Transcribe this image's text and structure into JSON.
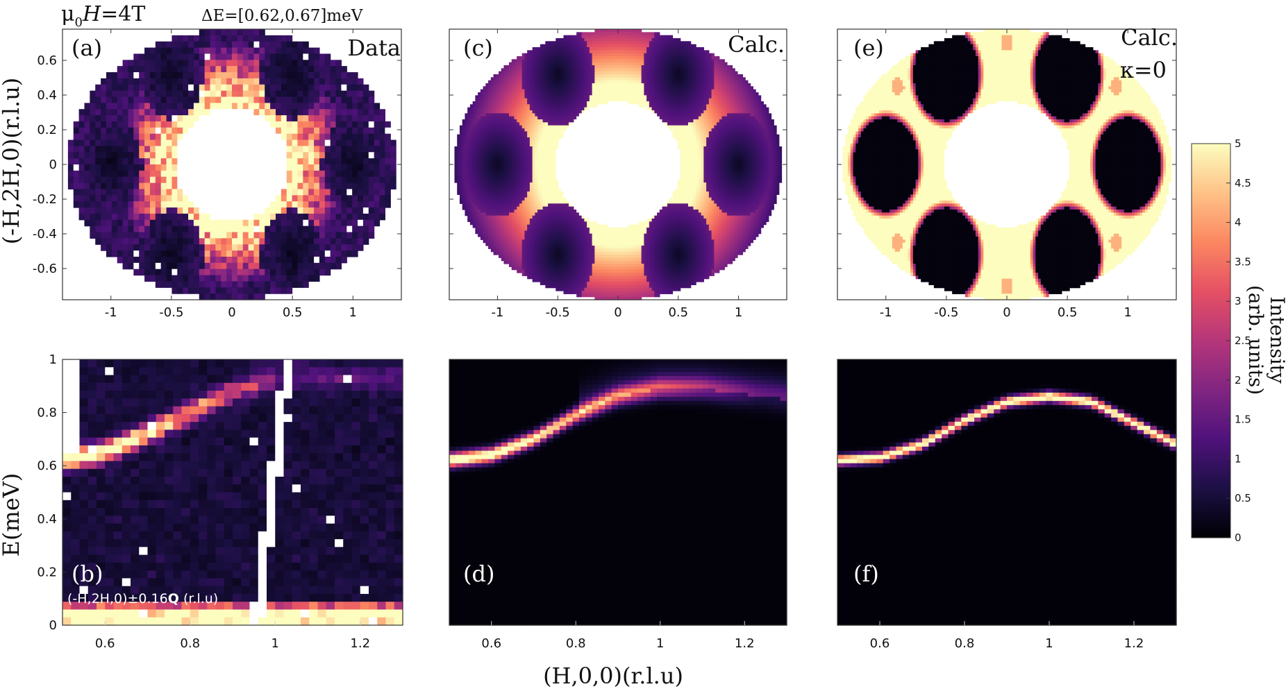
{
  "header": {
    "field_prefix": "μ",
    "field_sub": "0",
    "field_var": "H",
    "field_value": "=4T",
    "energy_window": "ΔE=[0.62,0.67]meV"
  },
  "colors": {
    "colormap": [
      "#000004",
      "#1c1044",
      "#4f127b",
      "#812581",
      "#b5367a",
      "#e55064",
      "#fb8761",
      "#fec287",
      "#fcfdbf"
    ],
    "background": "#ffffff"
  },
  "axes_labels": {
    "top_ylabel": "(-H,2H,0)(r.l.u)",
    "bottom_ylabel": "E(meV)",
    "bottom_xlabel": "(H,0,0)(r.l.u)"
  },
  "panels": {
    "a": {
      "label": "(a)",
      "tag": "Data"
    },
    "b": {
      "label": "(b)",
      "note_prefix": "(-H,2H,0)±0.16",
      "note_bold": "Q",
      "note_suffix": " (r.l.u)"
    },
    "c": {
      "label": "(c)",
      "tag": "Calc."
    },
    "d": {
      "label": "(d)"
    },
    "e": {
      "label": "(e)",
      "tag": "Calc.",
      "tag2": "κ=0"
    },
    "f": {
      "label": "(f)"
    }
  },
  "colorbar": {
    "label_line1": "Intensity",
    "label_line2": "(arb. units)",
    "range": [
      0,
      5
    ],
    "ticks": [
      "0",
      "0.5",
      "1",
      "1.5",
      "2",
      "2.5",
      "3",
      "3.5",
      "4",
      "4.5",
      "5"
    ]
  },
  "chart_data": [
    {
      "panel": "a",
      "type": "heatmap",
      "x_range": [
        -1.4,
        1.4
      ],
      "y_range": [
        -0.78,
        0.78
      ],
      "xticks": [
        "-1",
        "-0.5",
        "0",
        "0.5",
        "1"
      ],
      "yticks": [
        "-0.6",
        "-0.4",
        "-0.2",
        "0",
        "0.2",
        "0.4",
        "0.6"
      ],
      "description_values": {
        "dark_pockets": 6,
        "pocket_radius_rlu": 0.27,
        "bright_ring_intensity": 5,
        "mean_outer_intensity": 1.3
      }
    },
    {
      "panel": "c",
      "type": "heatmap",
      "x_range": [
        -1.4,
        1.4
      ],
      "y_range": [
        -0.78,
        0.78
      ],
      "xticks": [
        "-1",
        "-0.5",
        "0",
        "0.5",
        "1"
      ]
    },
    {
      "panel": "e",
      "type": "heatmap",
      "x_range": [
        -1.4,
        1.4
      ],
      "y_range": [
        -0.78,
        0.78
      ],
      "xticks": [
        "-1",
        "-0.5",
        "0",
        "0.5",
        "1"
      ]
    },
    {
      "panel": "b",
      "type": "heatmap",
      "x_range": [
        0.5,
        1.3
      ],
      "y_range": [
        0,
        1
      ],
      "xticks": [
        "0.6",
        "0.8",
        "1",
        "1.2"
      ],
      "yticks": [
        "0",
        "0.2",
        "0.4",
        "0.6",
        "0.8",
        "1"
      ],
      "dispersion_H": [
        0.5,
        0.6,
        0.7,
        0.8,
        0.9,
        1.0
      ],
      "dispersion_E_meV": [
        0.62,
        0.65,
        0.72,
        0.8,
        0.88,
        0.92
      ]
    },
    {
      "panel": "d",
      "type": "heatmap",
      "x_range": [
        0.5,
        1.3
      ],
      "y_range": [
        0,
        1
      ],
      "xticks": [
        "0.6",
        "0.8",
        "1",
        "1.2"
      ],
      "dispersion_H": [
        0.5,
        0.6,
        0.7,
        0.8,
        0.9,
        1.0,
        1.1,
        1.2
      ],
      "dispersion_E_meV": [
        0.62,
        0.64,
        0.7,
        0.79,
        0.86,
        0.89,
        0.89,
        0.87
      ]
    },
    {
      "panel": "f",
      "type": "heatmap",
      "x_range": [
        0.5,
        1.3
      ],
      "y_range": [
        0,
        1
      ],
      "xticks": [
        "0.6",
        "0.8",
        "1",
        "1.2"
      ],
      "dispersion_H": [
        0.5,
        0.6,
        0.7,
        0.8,
        0.9,
        1.0,
        1.1,
        1.2,
        1.3
      ],
      "dispersion_E_meV": [
        0.62,
        0.63,
        0.68,
        0.77,
        0.84,
        0.86,
        0.84,
        0.76,
        0.68
      ]
    }
  ]
}
